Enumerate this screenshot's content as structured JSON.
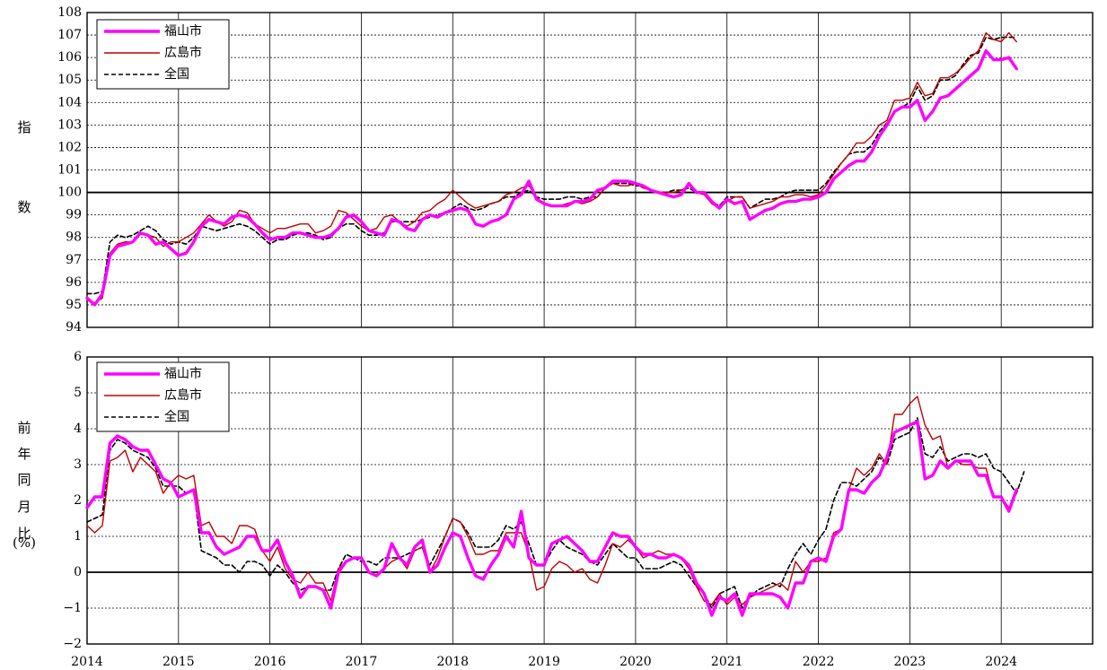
{
  "colors": {
    "fukuyama": "#ff00ff",
    "hiroshima": "#c00000",
    "national": "#000000",
    "grid": "#000000",
    "background": "#ffffff"
  },
  "x_axis_labels": [
    "2014",
    "2015",
    "2016",
    "2017",
    "2018",
    "2019",
    "2020",
    "2021",
    "2022",
    "2023",
    "2024"
  ],
  "chart_data": [
    {
      "type": "line",
      "title": "",
      "ylabel_chars": [
        "指",
        "数"
      ],
      "ylim": [
        94,
        108
      ],
      "yticks": [
        "94",
        "95",
        "96",
        "97",
        "98",
        "99",
        "100",
        "101",
        "102",
        "103",
        "104",
        "105",
        "106",
        "107",
        "108"
      ],
      "xlim": [
        2014.0,
        2025.0
      ],
      "reference_line": 100,
      "grid": true,
      "legend_position": "top-left",
      "series": [
        {
          "name": "福山市",
          "style": "thick-solid",
          "x_start": 2014.0,
          "x_step": 0.0833333,
          "values": [
            95.3,
            95.0,
            95.5,
            97.2,
            97.6,
            97.7,
            97.8,
            98.2,
            98.1,
            97.7,
            97.8,
            97.5,
            97.2,
            97.3,
            97.8,
            98.5,
            98.8,
            98.7,
            98.6,
            98.9,
            99.0,
            98.9,
            98.6,
            98.2,
            97.9,
            98.0,
            98.0,
            98.2,
            98.2,
            98.1,
            98.0,
            98.0,
            98.1,
            98.4,
            98.9,
            99.0,
            98.7,
            98.3,
            98.2,
            98.1,
            98.8,
            98.7,
            98.4,
            98.3,
            98.8,
            99.0,
            98.9,
            99.1,
            99.2,
            99.3,
            99.2,
            98.6,
            98.5,
            98.7,
            98.8,
            99.0,
            99.7,
            99.9,
            100.5,
            99.7,
            99.5,
            99.4,
            99.4,
            99.4,
            99.6,
            99.6,
            99.7,
            100.1,
            100.2,
            100.5,
            100.5,
            100.5,
            100.4,
            100.3,
            100.1,
            100.0,
            99.9,
            99.8,
            99.9,
            100.4,
            100.0,
            100.0,
            99.6,
            99.3,
            99.7,
            99.5,
            99.6,
            98.8,
            99.0,
            99.2,
            99.3,
            99.5,
            99.6,
            99.6,
            99.7,
            99.7,
            99.8,
            100.0,
            100.6,
            100.9,
            101.2,
            101.4,
            101.4,
            101.8,
            102.5,
            103.0,
            103.6,
            103.8,
            103.8,
            104.1,
            103.2,
            103.6,
            104.2,
            104.3,
            104.6,
            104.9,
            105.2,
            105.5,
            106.3,
            105.9,
            105.9,
            106.0,
            105.5
          ]
        },
        {
          "name": "広島市",
          "style": "thin-solid",
          "x_start": 2014.0,
          "x_step": 0.0833333,
          "values": [
            95.2,
            95.1,
            95.3,
            97.3,
            97.7,
            97.8,
            97.8,
            98.2,
            98.1,
            98.0,
            97.6,
            97.8,
            97.8,
            98.0,
            98.2,
            98.6,
            99.0,
            98.7,
            98.5,
            98.7,
            99.2,
            99.1,
            98.6,
            98.4,
            98.2,
            98.4,
            98.4,
            98.5,
            98.6,
            98.6,
            98.2,
            98.3,
            98.5,
            99.2,
            99.1,
            98.8,
            98.5,
            98.3,
            98.4,
            98.9,
            99.0,
            98.7,
            98.5,
            98.7,
            99.1,
            99.2,
            99.5,
            99.7,
            100.1,
            99.8,
            99.5,
            99.3,
            99.4,
            99.5,
            99.6,
            99.9,
            100.0,
            100.2,
            100.3,
            99.8,
            99.5,
            99.4,
            99.4,
            99.5,
            99.6,
            99.5,
            99.6,
            99.8,
            100.2,
            100.4,
            100.3,
            100.3,
            100.4,
            100.2,
            100.1,
            100.0,
            100.0,
            100.0,
            100.1,
            100.3,
            100.0,
            99.9,
            99.5,
            99.3,
            99.6,
            99.8,
            99.8,
            99.3,
            99.4,
            99.5,
            99.6,
            99.8,
            99.8,
            99.9,
            99.9,
            99.8,
            99.9,
            100.3,
            100.8,
            101.3,
            101.7,
            102.2,
            102.2,
            102.5,
            103.0,
            103.2,
            104.1,
            104.1,
            104.2,
            104.9,
            104.3,
            104.4,
            105.1,
            105.1,
            105.3,
            105.6,
            106.0,
            106.3,
            107.1,
            106.8,
            106.7,
            107.1,
            106.7
          ]
        },
        {
          "name": "全国",
          "style": "dashed",
          "x_start": 2014.0,
          "x_step": 0.0833333,
          "values": [
            95.5,
            95.5,
            95.6,
            97.8,
            98.1,
            98.0,
            98.1,
            98.3,
            98.5,
            98.3,
            97.9,
            97.7,
            97.8,
            97.7,
            98.0,
            98.5,
            98.4,
            98.3,
            98.4,
            98.5,
            98.6,
            98.5,
            98.3,
            98.0,
            97.7,
            97.9,
            97.9,
            98.1,
            98.2,
            98.2,
            98.1,
            97.9,
            98.0,
            98.4,
            98.6,
            98.6,
            98.3,
            98.1,
            98.1,
            98.2,
            98.7,
            98.7,
            98.7,
            98.7,
            98.8,
            98.9,
            99.0,
            99.1,
            99.3,
            99.5,
            99.3,
            99.2,
            99.3,
            99.5,
            99.6,
            99.8,
            99.8,
            100.0,
            100.1,
            99.8,
            99.7,
            99.7,
            99.7,
            99.8,
            99.8,
            99.7,
            99.8,
            99.8,
            100.2,
            100.4,
            100.4,
            100.4,
            100.3,
            100.3,
            100.1,
            100.0,
            100.0,
            100.1,
            100.1,
            100.2,
            100.0,
            100.0,
            99.6,
            99.4,
            99.8,
            99.8,
            99.8,
            99.3,
            99.5,
            99.7,
            99.7,
            99.8,
            100.0,
            100.1,
            100.1,
            100.1,
            100.1,
            100.4,
            100.9,
            101.3,
            101.7,
            101.8,
            101.8,
            102.1,
            102.7,
            103.1,
            103.6,
            103.8,
            104.0,
            104.7,
            104.1,
            104.3,
            105.0,
            105.0,
            105.2,
            105.7,
            106.1,
            106.2,
            106.9,
            106.8,
            106.9,
            106.9,
            106.9
          ]
        }
      ],
      "legend": [
        "福山市",
        "広島市",
        "全国"
      ]
    },
    {
      "type": "line",
      "title": "",
      "ylabel_chars": [
        "前",
        "年",
        "同",
        "月",
        "比",
        "(%)"
      ],
      "ylim": [
        -2,
        6
      ],
      "yticks": [
        "−2",
        "−1",
        "0",
        "1",
        "2",
        "3",
        "4",
        "5",
        "6"
      ],
      "xlim": [
        2014.0,
        2025.0
      ],
      "reference_line": 0,
      "grid": true,
      "legend_position": "top-left",
      "series": [
        {
          "name": "福山市",
          "style": "thick-solid",
          "x_start": 2014.0,
          "x_step": 0.0833333,
          "values": [
            1.8,
            2.1,
            2.1,
            3.6,
            3.8,
            3.7,
            3.5,
            3.4,
            3.4,
            3.0,
            2.6,
            2.5,
            2.1,
            2.2,
            2.3,
            1.1,
            1.1,
            0.7,
            0.5,
            0.6,
            0.7,
            1.0,
            1.0,
            0.6,
            0.6,
            0.9,
            0.3,
            -0.1,
            -0.7,
            -0.4,
            -0.4,
            -0.5,
            -1.0,
            0.0,
            0.3,
            0.4,
            0.4,
            0.0,
            -0.1,
            0.1,
            0.8,
            0.4,
            0.2,
            0.7,
            0.9,
            0.0,
            0.2,
            0.7,
            1.1,
            1.0,
            0.4,
            -0.1,
            -0.2,
            0.2,
            0.5,
            1.0,
            0.7,
            1.7,
            0.4,
            0.2,
            0.2,
            0.8,
            0.9,
            1.0,
            0.8,
            0.6,
            0.3,
            0.3,
            0.7,
            1.1,
            1.0,
            1.0,
            0.7,
            0.5,
            0.5,
            0.4,
            0.4,
            0.5,
            0.4,
            0.2,
            -0.3,
            -0.6,
            -1.2,
            -0.7,
            -0.8,
            -0.6,
            -1.2,
            -0.6,
            -0.6,
            -0.6,
            -0.6,
            -0.7,
            -1.0,
            -0.3,
            -0.3,
            0.3,
            0.4,
            0.3,
            1.0,
            1.2,
            2.3,
            2.3,
            2.2,
            2.5,
            2.7,
            3.2,
            3.9,
            4.0,
            4.1,
            4.2,
            2.6,
            2.7,
            3.1,
            2.9,
            3.1,
            3.1,
            3.1,
            2.7,
            2.7,
            2.1,
            2.1,
            1.7,
            2.3
          ]
        },
        {
          "name": "広島市",
          "style": "thin-solid",
          "x_start": 2014.0,
          "x_step": 0.0833333,
          "values": [
            1.3,
            1.1,
            1.3,
            3.1,
            3.2,
            3.4,
            2.8,
            3.2,
            3.0,
            2.8,
            2.2,
            2.5,
            2.7,
            2.6,
            2.7,
            1.3,
            1.4,
            1.0,
            1.0,
            0.8,
            1.3,
            1.3,
            1.2,
            0.6,
            0.3,
            0.7,
            0.1,
            -0.2,
            -0.3,
            0.0,
            -0.3,
            -0.3,
            -0.8,
            0.1,
            0.3,
            0.4,
            0.4,
            0.0,
            -0.1,
            0.1,
            0.3,
            0.4,
            0.1,
            0.6,
            0.7,
            0.0,
            0.4,
            1.0,
            1.5,
            1.4,
            1.0,
            0.5,
            0.5,
            0.6,
            0.6,
            1.1,
            1.1,
            1.1,
            0.5,
            -0.5,
            -0.4,
            0.1,
            0.3,
            0.2,
            0.0,
            0.1,
            -0.2,
            -0.3,
            0.2,
            0.8,
            0.7,
            0.9,
            0.7,
            0.4,
            0.5,
            0.6,
            0.5,
            0.5,
            0.4,
            0.1,
            -0.4,
            -0.8,
            -0.9,
            -0.6,
            -0.9,
            -0.7,
            -0.9,
            -0.7,
            -0.6,
            -0.5,
            -0.4,
            -0.3,
            -0.5,
            0.3,
            0.0,
            0.3,
            0.3,
            0.4,
            1.1,
            1.2,
            2.3,
            2.9,
            2.7,
            2.9,
            3.3,
            3.0,
            4.4,
            4.4,
            4.7,
            4.9,
            4.1,
            3.7,
            3.8,
            2.9,
            3.1,
            3.0,
            3.0,
            2.9,
            2.9,
            2.1,
            2.1,
            1.8,
            2.2
          ]
        },
        {
          "name": "全国",
          "style": "dashed",
          "x_start": 2014.0,
          "x_step": 0.0833333,
          "values": [
            1.4,
            1.5,
            1.6,
            3.4,
            3.7,
            3.6,
            3.4,
            3.3,
            3.2,
            2.9,
            2.4,
            2.4,
            2.4,
            2.2,
            2.3,
            0.6,
            0.5,
            0.4,
            0.2,
            0.2,
            0.0,
            0.3,
            0.3,
            0.2,
            -0.1,
            0.2,
            0.0,
            -0.3,
            -0.5,
            -0.4,
            -0.4,
            -0.5,
            -0.5,
            0.1,
            0.5,
            0.4,
            0.3,
            0.3,
            0.2,
            0.4,
            0.4,
            0.4,
            0.5,
            0.6,
            0.7,
            0.2,
            0.6,
            1.0,
            1.5,
            1.4,
            1.1,
            0.7,
            0.7,
            0.7,
            0.9,
            1.3,
            1.2,
            1.4,
            0.8,
            0.2,
            0.2,
            0.6,
            0.9,
            0.7,
            0.6,
            0.5,
            0.3,
            0.2,
            0.5,
            0.8,
            0.6,
            0.4,
            0.4,
            0.1,
            0.1,
            0.1,
            0.2,
            0.3,
            0.2,
            -0.1,
            -0.4,
            -0.6,
            -1.0,
            -0.6,
            -0.5,
            -0.4,
            -1.0,
            -0.7,
            -0.5,
            -0.4,
            -0.3,
            -0.4,
            0.1,
            0.5,
            0.8,
            0.5,
            0.9,
            1.2,
            2.0,
            2.5,
            2.5,
            2.4,
            2.6,
            2.8,
            3.2,
            3.0,
            3.7,
            3.8,
            3.9,
            4.3,
            3.3,
            3.2,
            3.5,
            3.1,
            3.2,
            3.3,
            3.3,
            3.2,
            3.3,
            2.9,
            2.8,
            2.5,
            2.2,
            2.8
          ]
        }
      ],
      "legend": [
        "福山市",
        "広島市",
        "全国"
      ]
    }
  ]
}
